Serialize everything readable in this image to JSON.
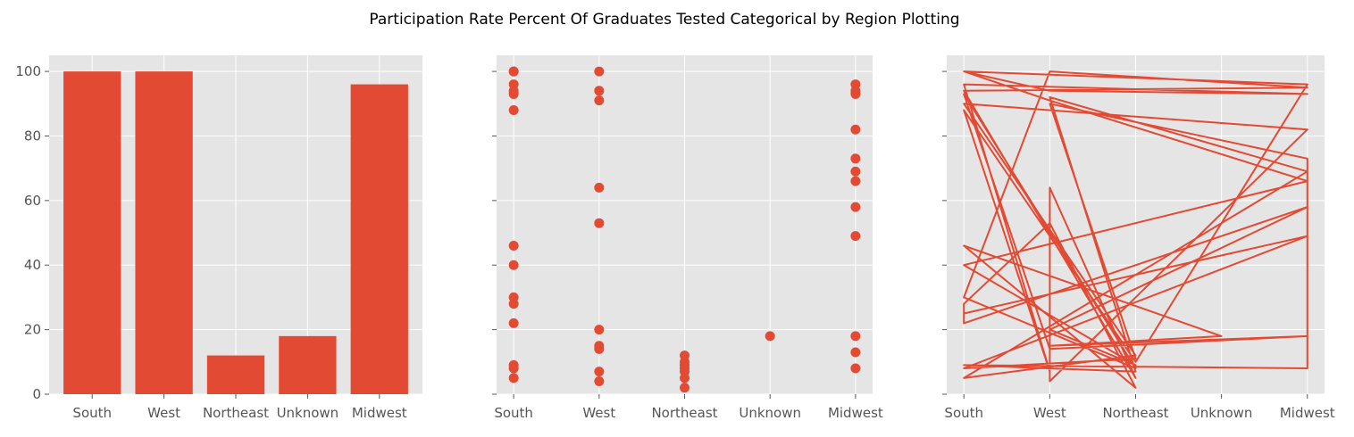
{
  "figure": {
    "title": "Participation Rate Percent Of Graduates Tested Categorical by Region Plotting"
  },
  "chart_data": [
    {
      "type": "bar",
      "categories": [
        "South",
        "West",
        "Northeast",
        "Unknown",
        "Midwest"
      ],
      "values": [
        100,
        100,
        12,
        18,
        96
      ],
      "ylim": [
        0,
        105
      ],
      "yticks": [
        0,
        20,
        40,
        60,
        80,
        100
      ],
      "grid": true,
      "color": "#E24A33"
    },
    {
      "type": "scatter",
      "categories": [
        "South",
        "West",
        "Northeast",
        "Unknown",
        "Midwest"
      ],
      "points": [
        [
          "South",
          100
        ],
        [
          "South",
          100
        ],
        [
          "South",
          96
        ],
        [
          "South",
          94
        ],
        [
          "South",
          93
        ],
        [
          "South",
          88
        ],
        [
          "South",
          46
        ],
        [
          "South",
          40
        ],
        [
          "South",
          30
        ],
        [
          "South",
          28
        ],
        [
          "South",
          22
        ],
        [
          "South",
          9
        ],
        [
          "South",
          8
        ],
        [
          "South",
          5
        ],
        [
          "West",
          100
        ],
        [
          "West",
          94
        ],
        [
          "West",
          91
        ],
        [
          "West",
          64
        ],
        [
          "West",
          53
        ],
        [
          "West",
          20
        ],
        [
          "West",
          15
        ],
        [
          "West",
          14
        ],
        [
          "West",
          7
        ],
        [
          "West",
          4
        ],
        [
          "Northeast",
          12
        ],
        [
          "Northeast",
          10
        ],
        [
          "Northeast",
          9
        ],
        [
          "Northeast",
          8
        ],
        [
          "Northeast",
          7
        ],
        [
          "Northeast",
          5
        ],
        [
          "Northeast",
          2
        ],
        [
          "Unknown",
          18
        ],
        [
          "Midwest",
          96
        ],
        [
          "Midwest",
          94
        ],
        [
          "Midwest",
          93
        ],
        [
          "Midwest",
          82
        ],
        [
          "Midwest",
          73
        ],
        [
          "Midwest",
          69
        ],
        [
          "Midwest",
          66
        ],
        [
          "Midwest",
          58
        ],
        [
          "Midwest",
          49
        ],
        [
          "Midwest",
          18
        ],
        [
          "Midwest",
          13
        ],
        [
          "Midwest",
          8
        ]
      ],
      "ylim": [
        0,
        105
      ],
      "grid": true,
      "color": "#E24A33"
    },
    {
      "type": "line",
      "categories": [
        "South",
        "West",
        "Northeast",
        "Unknown",
        "Midwest"
      ],
      "points": [
        [
          "South",
          100
        ],
        [
          "West",
          94
        ],
        [
          "Midwest",
          93
        ],
        [
          "South",
          96
        ],
        [
          "West",
          7
        ],
        [
          "South",
          88
        ],
        [
          "Northeast",
          10
        ],
        [
          "Midwest",
          96
        ],
        [
          "South",
          100
        ],
        [
          "West",
          91
        ],
        [
          "Midwest",
          66
        ],
        [
          "South",
          40
        ],
        [
          "Northeast",
          9
        ],
        [
          "West",
          20
        ],
        [
          "Midwest",
          58
        ],
        [
          "South",
          22
        ],
        [
          "South",
          28
        ],
        [
          "West",
          53
        ],
        [
          "Northeast",
          2
        ],
        [
          "South",
          46
        ],
        [
          "Unknown",
          18
        ],
        [
          "West",
          15
        ],
        [
          "Midwest",
          18
        ],
        [
          "West",
          14
        ],
        [
          "South",
          93
        ],
        [
          "Northeast",
          8
        ],
        [
          "South",
          30
        ],
        [
          "West",
          100
        ],
        [
          "Midwest",
          95
        ],
        [
          "South",
          94
        ],
        [
          "Northeast",
          5
        ],
        [
          "West",
          64
        ],
        [
          "West",
          4
        ],
        [
          "Midwest",
          82
        ],
        [
          "South",
          90
        ],
        [
          "Northeast",
          12
        ],
        [
          "South",
          5
        ],
        [
          "Midwest",
          69
        ],
        [
          "West",
          92
        ],
        [
          "Northeast",
          7
        ],
        [
          "South",
          9
        ],
        [
          "Midwest",
          8
        ],
        [
          "Midwest",
          13
        ],
        [
          "Midwest",
          73
        ],
        [
          "West",
          90
        ],
        [
          "Northeast",
          11
        ],
        [
          "South",
          8
        ],
        [
          "Midwest",
          49
        ],
        [
          "South",
          25
        ]
      ],
      "ylim": [
        0,
        105
      ],
      "grid": true,
      "color": "#E24A33"
    }
  ]
}
